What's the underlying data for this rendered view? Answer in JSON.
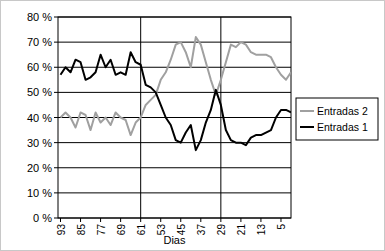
{
  "chart_data": {
    "type": "line",
    "x_label": "Dias",
    "x": [
      93,
      91,
      89,
      87,
      85,
      83,
      81,
      79,
      77,
      75,
      73,
      71,
      69,
      67,
      65,
      63,
      61,
      59,
      57,
      55,
      53,
      51,
      49,
      47,
      45,
      43,
      41,
      39,
      37,
      35,
      33,
      31,
      29,
      27,
      25,
      23,
      21,
      19,
      17,
      15,
      13,
      11,
      9,
      7,
      5,
      3,
      1
    ],
    "series": [
      {
        "name": "Entradas 2",
        "color": "#a0a0a0",
        "values": [
          40,
          42,
          40,
          36,
          42,
          41,
          35,
          42,
          38,
          40,
          37,
          42,
          40,
          39,
          33,
          38,
          40,
          45,
          47,
          49,
          55,
          58,
          63,
          69,
          70,
          66,
          60,
          72,
          69,
          62,
          55,
          49,
          55,
          62,
          69,
          68,
          70,
          69,
          66,
          65,
          65,
          65,
          64,
          60,
          57,
          55,
          58
        ]
      },
      {
        "name": "Entradas 1",
        "color": "#000000",
        "values": [
          57,
          60,
          58,
          63,
          62,
          55,
          56,
          58,
          65,
          60,
          63,
          57,
          58,
          57,
          66,
          62,
          61,
          53,
          52,
          50,
          45,
          40,
          37,
          31,
          30,
          34,
          37,
          27,
          31,
          38,
          43,
          51,
          45,
          35,
          31,
          30,
          30,
          29,
          32,
          33,
          33,
          34,
          35,
          40,
          43,
          43,
          42
        ]
      }
    ],
    "xlim": [
      94,
      1
    ],
    "xticks": [
      93,
      85,
      77,
      69,
      61,
      53,
      45,
      37,
      29,
      21,
      13,
      5
    ],
    "ylim": [
      0,
      80
    ],
    "yticks": [
      {
        "value": 0,
        "label": "0 %"
      },
      {
        "value": 10,
        "label": "10 %"
      },
      {
        "value": 20,
        "label": "20 %"
      },
      {
        "value": 30,
        "label": "30 %"
      },
      {
        "value": 40,
        "label": "40 %"
      },
      {
        "value": 50,
        "label": "50 %"
      },
      {
        "value": 60,
        "label": "60 %"
      },
      {
        "value": 70,
        "label": "70 %"
      },
      {
        "value": 80,
        "label": "80 %"
      }
    ],
    "vlines": [
      61,
      29
    ],
    "grid": true,
    "legend": "right"
  }
}
